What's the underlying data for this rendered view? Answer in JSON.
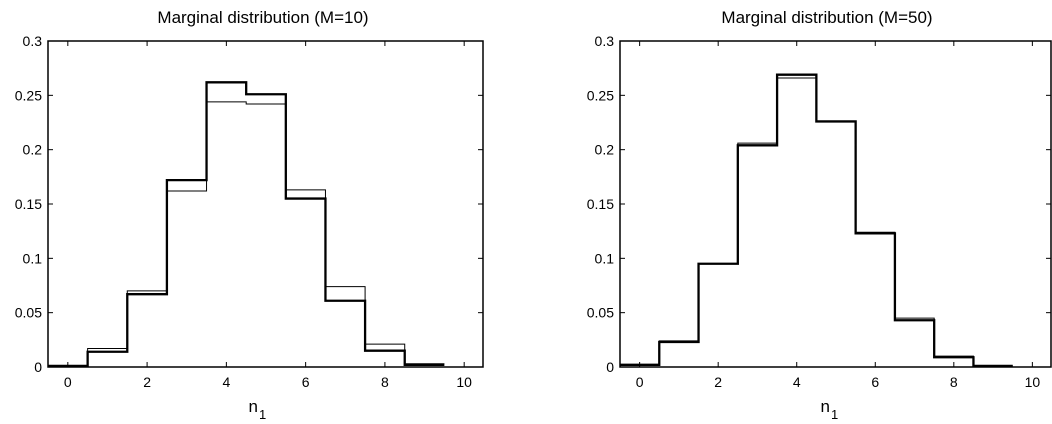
{
  "chart_data": [
    {
      "type": "line",
      "step": true,
      "title": "Marginal distribution (M=10)",
      "xlabel": "n",
      "xlabel_subscript": "1",
      "xlim": [
        -0.5,
        10.5
      ],
      "ylim": [
        0,
        0.3
      ],
      "xticks": [
        "0",
        "2",
        "4",
        "6",
        "8",
        "10"
      ],
      "yticks": [
        "0",
        "0.05",
        "0.1",
        "0.15",
        "0.2",
        "0.25",
        "0.3"
      ],
      "x": [
        0,
        1,
        2,
        3,
        4,
        5,
        6,
        7,
        8,
        9
      ],
      "series": [
        {
          "values": [
            0.001,
            0.014,
            0.067,
            0.172,
            0.262,
            0.251,
            0.155,
            0.061,
            0.015,
            0.002
          ]
        },
        {
          "values": [
            0.001,
            0.017,
            0.07,
            0.162,
            0.244,
            0.242,
            0.163,
            0.074,
            0.021,
            0.003
          ]
        }
      ],
      "grid": false
    },
    {
      "type": "line",
      "step": true,
      "title": "Marginal distribution (M=50)",
      "xlabel": "n",
      "xlabel_subscript": "1",
      "xlim": [
        -0.5,
        10.5
      ],
      "ylim": [
        0,
        0.3
      ],
      "xticks": [
        "0",
        "2",
        "4",
        "6",
        "8",
        "10"
      ],
      "yticks": [
        "0",
        "0.05",
        "0.1",
        "0.15",
        "0.2",
        "0.25",
        "0.3"
      ],
      "x": [
        0,
        1,
        2,
        3,
        4,
        5,
        6,
        7,
        8,
        9
      ],
      "series": [
        {
          "values": [
            0.002,
            0.023,
            0.095,
            0.204,
            0.269,
            0.226,
            0.123,
            0.043,
            0.009,
            0.001
          ]
        },
        {
          "values": [
            0.002,
            0.024,
            0.095,
            0.206,
            0.266,
            0.226,
            0.124,
            0.045,
            0.01,
            0.001
          ]
        }
      ],
      "grid": false
    }
  ]
}
